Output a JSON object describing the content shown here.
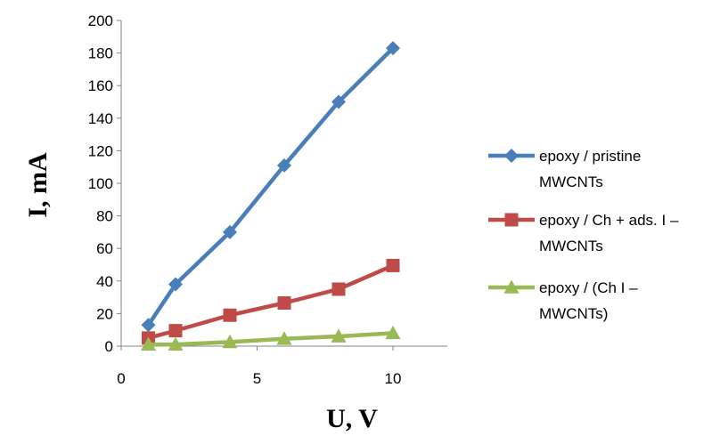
{
  "chart_data": {
    "type": "line",
    "title": "",
    "xlabel": "U, V",
    "ylabel": "I, mA",
    "xlim": [
      0,
      12
    ],
    "ylim": [
      0,
      200
    ],
    "x_ticks": [
      0,
      5,
      10
    ],
    "y_ticks": [
      0,
      20,
      40,
      60,
      80,
      100,
      120,
      140,
      160,
      180,
      200
    ],
    "grid": false,
    "legend_position": "right",
    "series": [
      {
        "name_lines": [
          "epoxy / pristine",
          "MWCNTs"
        ],
        "color": "#4a7ebb",
        "marker": "diamond",
        "x": [
          1,
          2,
          4,
          6,
          8,
          10
        ],
        "y": [
          13,
          38,
          70,
          111,
          150,
          183
        ]
      },
      {
        "name_lines": [
          "epoxy / Ch + ads. I –",
          "MWCNTs"
        ],
        "color": "#be4b48",
        "marker": "square",
        "x": [
          1,
          2,
          4,
          6,
          8,
          10
        ],
        "y": [
          5,
          9.5,
          19,
          26.5,
          35,
          49.5
        ]
      },
      {
        "name_lines": [
          "epoxy / (Ch I –",
          "MWCNTs)"
        ],
        "color": "#98b954",
        "marker": "triangle",
        "x": [
          1,
          2,
          4,
          6,
          8,
          10
        ],
        "y": [
          1,
          1,
          2.5,
          4.5,
          6,
          8
        ]
      }
    ]
  }
}
